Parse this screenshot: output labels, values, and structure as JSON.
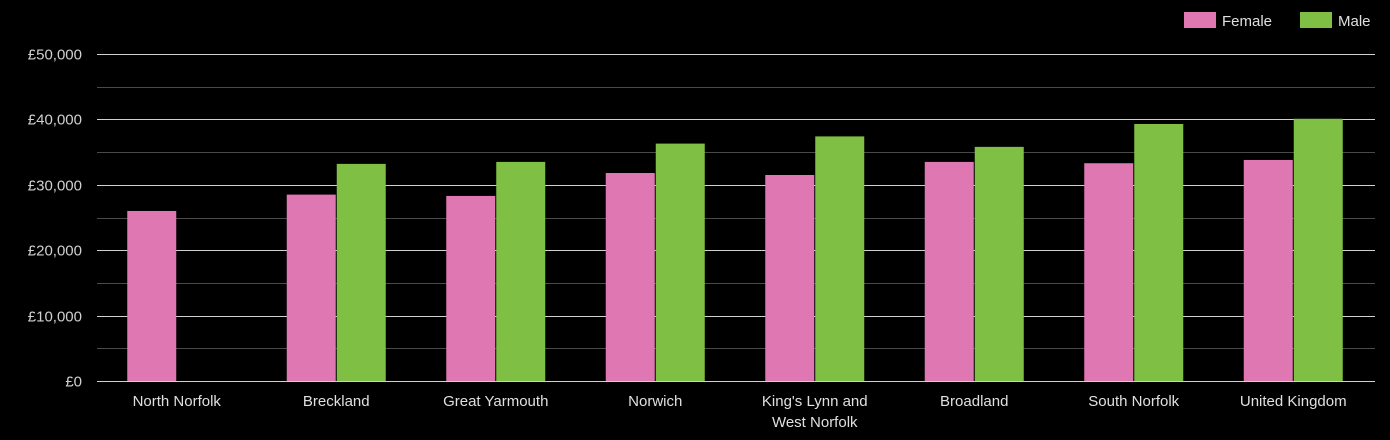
{
  "chart_data": {
    "type": "bar",
    "categories": [
      [
        "North Norfolk"
      ],
      [
        "Breckland"
      ],
      [
        "Great Yarmouth"
      ],
      [
        "Norwich"
      ],
      [
        "King's Lynn and",
        "West Norfolk"
      ],
      [
        "Broadland"
      ],
      [
        "South Norfolk"
      ],
      [
        "United Kingdom"
      ]
    ],
    "series": [
      {
        "name": "Female",
        "color": "#df77b2",
        "values": [
          26000,
          28500,
          28300,
          31800,
          31500,
          33500,
          33300,
          33800
        ]
      },
      {
        "name": "Male",
        "color": "#7fbf43",
        "values": [
          null,
          33200,
          33500,
          36300,
          37400,
          35800,
          39300,
          40100
        ]
      }
    ],
    "ylim": [
      0,
      50000
    ],
    "y_ticks": [
      {
        "value": 0,
        "label": "£0"
      },
      {
        "value": 10000,
        "label": "£10,000"
      },
      {
        "value": 20000,
        "label": "£20,000"
      },
      {
        "value": 30000,
        "label": "£30,000"
      },
      {
        "value": 40000,
        "label": "£40,000"
      },
      {
        "value": 50000,
        "label": "£50,000"
      }
    ],
    "minor_gridlines": [
      5000,
      15000,
      25000,
      35000,
      45000
    ],
    "grid": true,
    "legend_position": "top-right",
    "background": "#000000",
    "gridline_color": "#4a4a4a",
    "major_gridline_color": "#d0d0d0"
  }
}
